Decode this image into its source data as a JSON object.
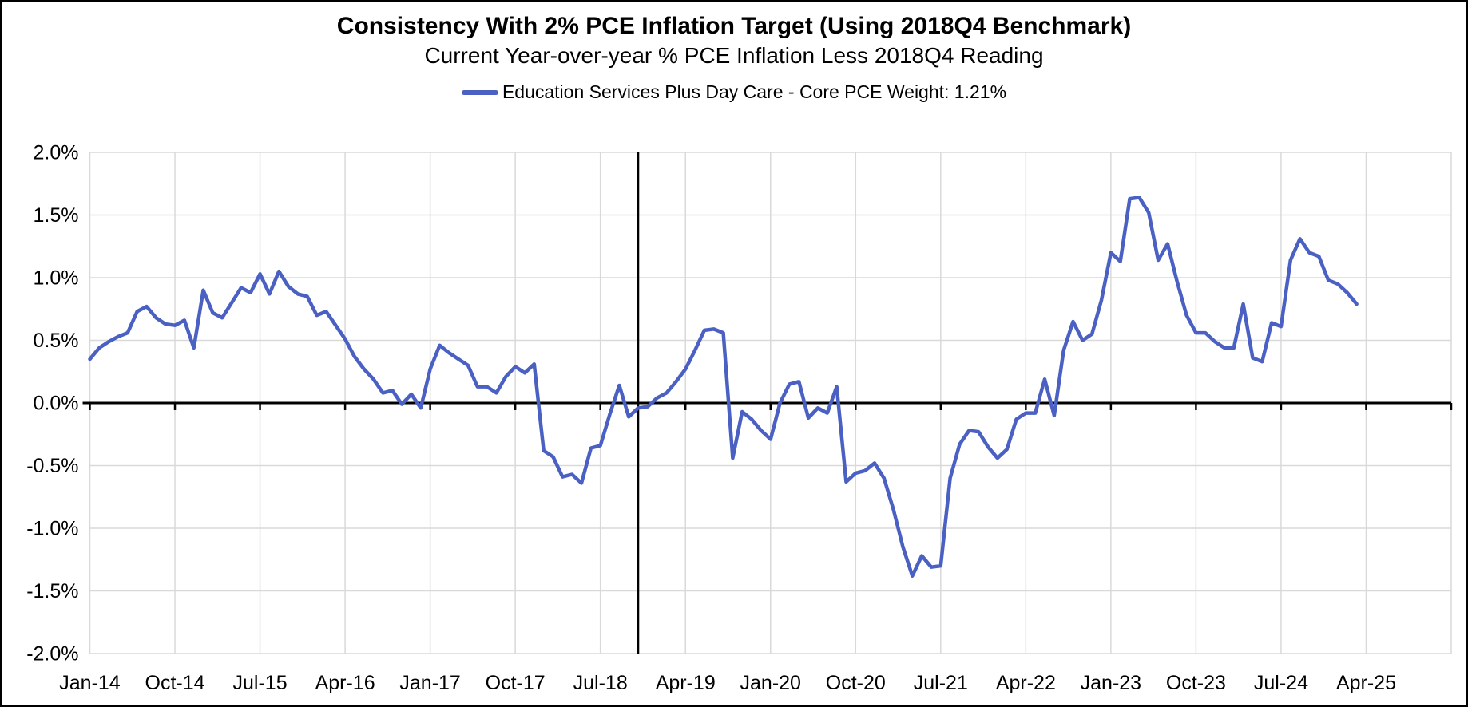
{
  "chart": {
    "title": "Consistency With 2% PCE Inflation Target (Using 2018Q4 Benchmark)",
    "subtitle": "Current Year-over-year % PCE Inflation Less 2018Q4 Reading",
    "legend_label": "Education Services Plus Day Care  - Core PCE Weight: 1.21%",
    "colors": {
      "series_line": "#4a60c2",
      "gridline": "#d9d9d9",
      "axis": "#000000",
      "background": "#ffffff",
      "text": "#000000"
    }
  },
  "chart_data": {
    "type": "line",
    "title": "Consistency With 2% PCE Inflation Target (Using 2018Q4 Benchmark)",
    "subtitle": "Current Year-over-year % PCE Inflation Less 2018Q4 Reading",
    "legend": [
      "Education Services Plus Day Care  - Core PCE Weight: 1.21%"
    ],
    "legend_position": "top",
    "grid": true,
    "ylabel": "",
    "xlabel": "",
    "ylim": [
      -2.0,
      2.0
    ],
    "ytick_step_pct": 0.5,
    "y_tick_labels": [
      "2.0%",
      "1.5%",
      "1.0%",
      "0.5%",
      "0.0%",
      "-0.5%",
      "-1.0%",
      "-1.5%",
      "-2.0%"
    ],
    "x_tick_labels": [
      "Jan-14",
      "Oct-14",
      "Jul-15",
      "Apr-16",
      "Jan-17",
      "Oct-17",
      "Jul-18",
      "Apr-19",
      "Jan-20",
      "Oct-20",
      "Jul-21",
      "Apr-22",
      "Jan-23",
      "Oct-23",
      "Jul-24",
      "Apr-25"
    ],
    "x_tick_interval_months": 9,
    "x_axis_total_months": 144,
    "zero_axis": true,
    "benchmark_vline_month": "Nov-18",
    "series": [
      {
        "name": "Education Services Plus Day Care  - Core PCE Weight: 1.21%",
        "unit": "percent",
        "x": [
          "Jan-14",
          "Feb-14",
          "Mar-14",
          "Apr-14",
          "May-14",
          "Jun-14",
          "Jul-14",
          "Aug-14",
          "Sep-14",
          "Oct-14",
          "Nov-14",
          "Dec-14",
          "Jan-15",
          "Feb-15",
          "Mar-15",
          "Apr-15",
          "May-15",
          "Jun-15",
          "Jul-15",
          "Aug-15",
          "Sep-15",
          "Oct-15",
          "Nov-15",
          "Dec-15",
          "Jan-16",
          "Feb-16",
          "Mar-16",
          "Apr-16",
          "May-16",
          "Jun-16",
          "Jul-16",
          "Aug-16",
          "Sep-16",
          "Oct-16",
          "Nov-16",
          "Dec-16",
          "Jan-17",
          "Feb-17",
          "Mar-17",
          "Apr-17",
          "May-17",
          "Jun-17",
          "Jul-17",
          "Aug-17",
          "Sep-17",
          "Oct-17",
          "Nov-17",
          "Dec-17",
          "Jan-18",
          "Feb-18",
          "Mar-18",
          "Apr-18",
          "May-18",
          "Jun-18",
          "Jul-18",
          "Aug-18",
          "Sep-18",
          "Oct-18",
          "Nov-18",
          "Dec-18",
          "Jan-19",
          "Feb-19",
          "Mar-19",
          "Apr-19",
          "May-19",
          "Jun-19",
          "Jul-19",
          "Aug-19",
          "Sep-19",
          "Oct-19",
          "Nov-19",
          "Dec-19",
          "Jan-20",
          "Feb-20",
          "Mar-20",
          "Apr-20",
          "May-20",
          "Jun-20",
          "Jul-20",
          "Aug-20",
          "Sep-20",
          "Oct-20",
          "Nov-20",
          "Dec-20",
          "Jan-21",
          "Feb-21",
          "Mar-21",
          "Apr-21",
          "May-21",
          "Jun-21",
          "Jul-21",
          "Aug-21",
          "Sep-21",
          "Oct-21",
          "Nov-21",
          "Dec-21",
          "Jan-22",
          "Feb-22",
          "Mar-22",
          "Apr-22",
          "May-22",
          "Jun-22",
          "Jul-22",
          "Aug-22",
          "Sep-22",
          "Oct-22",
          "Nov-22",
          "Dec-22",
          "Jan-23",
          "Feb-23",
          "Mar-23",
          "Apr-23",
          "May-23",
          "Jun-23",
          "Jul-23",
          "Aug-23",
          "Sep-23",
          "Oct-23",
          "Nov-23",
          "Dec-23",
          "Jan-24",
          "Feb-24",
          "Mar-24",
          "Apr-24",
          "May-24",
          "Jun-24",
          "Jul-24",
          "Aug-24",
          "Sep-24",
          "Oct-24",
          "Nov-24",
          "Dec-24",
          "Jan-25",
          "Feb-25",
          "Mar-25"
        ],
        "values": [
          0.35,
          0.44,
          0.49,
          0.53,
          0.56,
          0.73,
          0.77,
          0.68,
          0.63,
          0.62,
          0.66,
          0.44,
          0.9,
          0.72,
          0.68,
          0.8,
          0.92,
          0.88,
          1.03,
          0.87,
          1.05,
          0.93,
          0.87,
          0.85,
          0.7,
          0.73,
          0.62,
          0.51,
          0.37,
          0.27,
          0.19,
          0.08,
          0.1,
          -0.01,
          0.07,
          -0.04,
          0.27,
          0.46,
          0.4,
          0.35,
          0.3,
          0.13,
          0.13,
          0.08,
          0.21,
          0.29,
          0.24,
          0.31,
          -0.38,
          -0.43,
          -0.59,
          -0.57,
          -0.64,
          -0.36,
          -0.34,
          -0.09,
          0.14,
          -0.11,
          -0.04,
          -0.03,
          0.04,
          0.08,
          0.17,
          0.27,
          0.42,
          0.58,
          0.59,
          0.56,
          -0.44,
          -0.07,
          -0.13,
          -0.22,
          -0.29,
          0.0,
          0.15,
          0.17,
          -0.12,
          -0.04,
          -0.08,
          0.13,
          -0.63,
          -0.56,
          -0.54,
          -0.48,
          -0.6,
          -0.85,
          -1.15,
          -1.38,
          -1.22,
          -1.31,
          -1.3,
          -0.6,
          -0.33,
          -0.22,
          -0.23,
          -0.35,
          -0.44,
          -0.37,
          -0.13,
          -0.08,
          -0.08,
          0.19,
          -0.1,
          0.42,
          0.65,
          0.5,
          0.55,
          0.82,
          1.2,
          1.13,
          1.63,
          1.64,
          1.52,
          1.14,
          1.27,
          0.97,
          0.7,
          0.56,
          0.56,
          0.49,
          0.44,
          0.44,
          0.79,
          0.36,
          0.33,
          0.64,
          0.61,
          1.14,
          1.31,
          1.2,
          1.17,
          0.98,
          0.95,
          0.88,
          0.79
        ]
      }
    ]
  }
}
